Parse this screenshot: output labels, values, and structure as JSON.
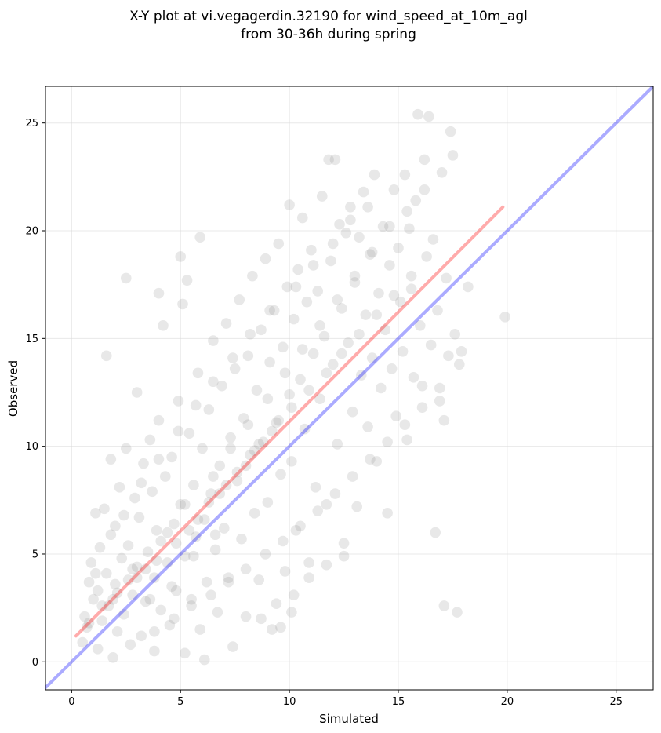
{
  "chart_data": {
    "type": "scatter",
    "title_line1": "X-Y plot at vi.vegagerdin.32190 for wind_speed_at_10m_agl",
    "title_line2": "from 30-36h during spring",
    "xlabel": "Simulated",
    "ylabel": "Observed",
    "xlim": [
      -1.2,
      26.7
    ],
    "ylim": [
      -1.3,
      26.7
    ],
    "xticks": [
      0,
      5,
      10,
      15,
      20,
      25
    ],
    "yticks": [
      0,
      5,
      10,
      15,
      20,
      25
    ],
    "grid": true,
    "point_color": "#7f7f7f",
    "identity_line": {
      "x": [
        -1.2,
        26.7
      ],
      "y": [
        -1.2,
        26.7
      ],
      "color": "#0000ff"
    },
    "fit_line": {
      "x": [
        0.2,
        19.8
      ],
      "y": [
        1.2,
        21.1
      ],
      "color": "#ff0000"
    },
    "points": [
      [
        0.5,
        0.9
      ],
      [
        0.6,
        2.1
      ],
      [
        0.7,
        1.6
      ],
      [
        0.8,
        3.7
      ],
      [
        0.9,
        4.6
      ],
      [
        1.0,
        2.9
      ],
      [
        1.1,
        6.9
      ],
      [
        1.2,
        0.6
      ],
      [
        1.2,
        3.3
      ],
      [
        1.3,
        5.3
      ],
      [
        1.4,
        1.9
      ],
      [
        1.5,
        7.1
      ],
      [
        1.6,
        4.1
      ],
      [
        1.7,
        2.6
      ],
      [
        1.8,
        9.4
      ],
      [
        1.8,
        5.9
      ],
      [
        1.9,
        0.2
      ],
      [
        2.0,
        3.6
      ],
      [
        2.0,
        6.3
      ],
      [
        2.1,
        1.4
      ],
      [
        2.2,
        8.1
      ],
      [
        2.3,
        4.8
      ],
      [
        2.4,
        2.2
      ],
      [
        2.5,
        17.8
      ],
      [
        2.5,
        9.9
      ],
      [
        2.6,
        5.4
      ],
      [
        2.7,
        0.8
      ],
      [
        2.8,
        3.1
      ],
      [
        2.9,
        7.6
      ],
      [
        3.0,
        12.5
      ],
      [
        3.0,
        4.4
      ],
      [
        3.1,
        6.7
      ],
      [
        3.2,
        1.2
      ],
      [
        3.3,
        9.2
      ],
      [
        3.4,
        2.8
      ],
      [
        3.5,
        5.1
      ],
      [
        3.6,
        10.3
      ],
      [
        3.7,
        7.9
      ],
      [
        3.8,
        0.5
      ],
      [
        3.8,
        3.9
      ],
      [
        3.9,
        6.1
      ],
      [
        4.0,
        17.1
      ],
      [
        4.0,
        11.2
      ],
      [
        4.1,
        2.4
      ],
      [
        4.2,
        15.6
      ],
      [
        4.3,
        8.6
      ],
      [
        4.4,
        4.6
      ],
      [
        4.5,
        1.7
      ],
      [
        4.6,
        9.5
      ],
      [
        4.7,
        6.4
      ],
      [
        4.8,
        3.3
      ],
      [
        4.9,
        12.1
      ],
      [
        5.0,
        18.8
      ],
      [
        5.0,
        7.3
      ],
      [
        5.1,
        16.6
      ],
      [
        5.2,
        0.4
      ],
      [
        5.2,
        4.9
      ],
      [
        5.3,
        17.7
      ],
      [
        5.4,
        10.6
      ],
      [
        5.5,
        2.9
      ],
      [
        5.6,
        8.2
      ],
      [
        5.7,
        5.8
      ],
      [
        5.8,
        13.4
      ],
      [
        5.9,
        1.5
      ],
      [
        5.9,
        19.7
      ],
      [
        6.0,
        9.9
      ],
      [
        6.1,
        6.6
      ],
      [
        6.1,
        0.1
      ],
      [
        6.2,
        3.7
      ],
      [
        6.3,
        11.7
      ],
      [
        6.4,
        7.8
      ],
      [
        6.5,
        14.9
      ],
      [
        6.6,
        5.2
      ],
      [
        6.7,
        2.3
      ],
      [
        6.8,
        9.1
      ],
      [
        6.9,
        12.8
      ],
      [
        7.0,
        6.2
      ],
      [
        7.1,
        15.7
      ],
      [
        7.2,
        3.9
      ],
      [
        7.3,
        10.4
      ],
      [
        7.4,
        0.7
      ],
      [
        7.5,
        13.6
      ],
      [
        7.6,
        8.4
      ],
      [
        7.7,
        16.8
      ],
      [
        7.8,
        5.7
      ],
      [
        7.9,
        11.3
      ],
      [
        8.0,
        2.1
      ],
      [
        8.1,
        14.2
      ],
      [
        8.2,
        9.6
      ],
      [
        8.3,
        17.9
      ],
      [
        8.4,
        6.9
      ],
      [
        8.5,
        12.6
      ],
      [
        8.6,
        3.8
      ],
      [
        8.7,
        15.4
      ],
      [
        8.8,
        10.2
      ],
      [
        8.9,
        18.7
      ],
      [
        9.0,
        7.4
      ],
      [
        9.1,
        13.9
      ],
      [
        9.2,
        1.5
      ],
      [
        9.3,
        16.3
      ],
      [
        9.4,
        11.1
      ],
      [
        9.5,
        19.4
      ],
      [
        9.6,
        8.7
      ],
      [
        9.7,
        14.6
      ],
      [
        9.8,
        4.2
      ],
      [
        9.9,
        17.4
      ],
      [
        10.0,
        12.4
      ],
      [
        10.0,
        21.2
      ],
      [
        10.1,
        9.3
      ],
      [
        10.2,
        15.9
      ],
      [
        10.3,
        6.1
      ],
      [
        10.4,
        18.2
      ],
      [
        10.5,
        13.1
      ],
      [
        10.6,
        20.6
      ],
      [
        10.7,
        10.8
      ],
      [
        10.8,
        16.7
      ],
      [
        10.9,
        4.6
      ],
      [
        11.0,
        19.1
      ],
      [
        11.1,
        14.3
      ],
      [
        11.2,
        8.1
      ],
      [
        11.3,
        17.2
      ],
      [
        11.4,
        12.2
      ],
      [
        11.5,
        21.6
      ],
      [
        11.6,
        15.1
      ],
      [
        11.7,
        7.3
      ],
      [
        11.8,
        23.3
      ],
      [
        11.9,
        18.6
      ],
      [
        12.0,
        13.8
      ],
      [
        12.1,
        23.3
      ],
      [
        12.2,
        10.1
      ],
      [
        12.3,
        20.3
      ],
      [
        12.4,
        16.4
      ],
      [
        12.5,
        4.9
      ],
      [
        12.6,
        19.9
      ],
      [
        12.7,
        14.8
      ],
      [
        12.8,
        21.1
      ],
      [
        12.9,
        11.6
      ],
      [
        13.0,
        17.6
      ],
      [
        13.1,
        7.2
      ],
      [
        13.2,
        19.7
      ],
      [
        13.3,
        13.3
      ],
      [
        13.4,
        21.8
      ],
      [
        13.5,
        16.1
      ],
      [
        13.6,
        10.9
      ],
      [
        13.7,
        18.9
      ],
      [
        13.8,
        14.1
      ],
      [
        13.9,
        22.6
      ],
      [
        14.0,
        9.3
      ],
      [
        14.1,
        17.1
      ],
      [
        14.2,
        12.7
      ],
      [
        14.3,
        20.2
      ],
      [
        14.4,
        15.4
      ],
      [
        14.5,
        6.9
      ],
      [
        14.6,
        18.4
      ],
      [
        14.7,
        13.6
      ],
      [
        14.8,
        21.9
      ],
      [
        14.9,
        11.4
      ],
      [
        15.0,
        19.2
      ],
      [
        15.1,
        16.7
      ],
      [
        15.2,
        14.4
      ],
      [
        15.3,
        22.6
      ],
      [
        15.4,
        10.3
      ],
      [
        15.5,
        20.1
      ],
      [
        15.6,
        17.3
      ],
      [
        15.7,
        13.2
      ],
      [
        15.8,
        21.4
      ],
      [
        15.9,
        25.4
      ],
      [
        16.0,
        15.6
      ],
      [
        16.1,
        12.8
      ],
      [
        16.2,
        23.3
      ],
      [
        16.3,
        18.8
      ],
      [
        16.4,
        25.3
      ],
      [
        16.5,
        14.7
      ],
      [
        16.6,
        19.6
      ],
      [
        16.7,
        6.0
      ],
      [
        16.8,
        16.3
      ],
      [
        16.9,
        12.1
      ],
      [
        17.0,
        22.7
      ],
      [
        17.1,
        2.6
      ],
      [
        17.2,
        17.8
      ],
      [
        17.3,
        14.2
      ],
      [
        17.4,
        24.6
      ],
      [
        17.5,
        23.5
      ],
      [
        17.6,
        15.2
      ],
      [
        17.7,
        2.3
      ],
      [
        17.8,
        13.8
      ],
      [
        17.9,
        14.4
      ],
      [
        18.2,
        17.4
      ],
      [
        19.9,
        16.0
      ],
      [
        17.1,
        11.2
      ],
      [
        1.6,
        14.2
      ],
      [
        3.6,
        2.9
      ],
      [
        4.6,
        3.5
      ],
      [
        5.6,
        4.9
      ],
      [
        6.6,
        5.9
      ],
      [
        2.6,
        3.8
      ],
      [
        3.4,
        4.3
      ],
      [
        4.1,
        5.6
      ],
      [
        5.4,
        6.1
      ],
      [
        6.3,
        7.4
      ],
      [
        7.1,
        8.2
      ],
      [
        8.0,
        9.1
      ],
      [
        8.6,
        10.1
      ],
      [
        9.2,
        10.7
      ],
      [
        10.1,
        11.8
      ],
      [
        10.9,
        12.6
      ],
      [
        11.7,
        13.4
      ],
      [
        12.4,
        14.3
      ],
      [
        13.2,
        15.2
      ],
      [
        14.0,
        16.1
      ],
      [
        14.8,
        17.0
      ],
      [
        15.6,
        17.9
      ],
      [
        1.4,
        2.6
      ],
      [
        2.1,
        3.2
      ],
      [
        3.0,
        3.9
      ],
      [
        3.9,
        4.7
      ],
      [
        4.8,
        5.5
      ],
      [
        5.8,
        6.6
      ],
      [
        6.8,
        7.8
      ],
      [
        7.6,
        8.8
      ],
      [
        8.4,
        9.8
      ],
      [
        9.5,
        11.2
      ],
      [
        0.8,
        1.8
      ],
      [
        1.9,
        2.9
      ],
      [
        2.8,
        4.3
      ],
      [
        4.4,
        6.0
      ],
      [
        5.2,
        7.3
      ],
      [
        6.5,
        8.6
      ],
      [
        7.3,
        9.9
      ],
      [
        8.1,
        11.0
      ],
      [
        9.0,
        12.2
      ],
      [
        9.8,
        13.4
      ],
      [
        10.6,
        14.5
      ],
      [
        11.4,
        15.6
      ],
      [
        12.2,
        16.8
      ],
      [
        13.0,
        17.9
      ],
      [
        13.8,
        19.0
      ],
      [
        14.6,
        20.2
      ],
      [
        15.4,
        20.9
      ],
      [
        16.2,
        21.9
      ],
      [
        1.1,
        4.1
      ],
      [
        2.4,
        6.8
      ],
      [
        3.2,
        8.3
      ],
      [
        4.0,
        9.4
      ],
      [
        4.9,
        10.7
      ],
      [
        5.7,
        11.9
      ],
      [
        6.5,
        13.0
      ],
      [
        7.4,
        14.1
      ],
      [
        8.2,
        15.2
      ],
      [
        9.1,
        16.3
      ],
      [
        10.3,
        17.4
      ],
      [
        11.1,
        18.4
      ],
      [
        12.0,
        19.4
      ],
      [
        12.8,
        20.5
      ],
      [
        13.6,
        21.1
      ],
      [
        3.8,
        1.4
      ],
      [
        4.7,
        2.0
      ],
      [
        5.5,
        2.6
      ],
      [
        6.4,
        3.1
      ],
      [
        7.2,
        3.7
      ],
      [
        8.0,
        4.3
      ],
      [
        8.9,
        5.0
      ],
      [
        9.7,
        5.6
      ],
      [
        10.5,
        6.3
      ],
      [
        11.3,
        7.0
      ],
      [
        12.1,
        7.8
      ],
      [
        12.9,
        8.6
      ],
      [
        13.7,
        9.4
      ],
      [
        14.5,
        10.2
      ],
      [
        15.3,
        11.0
      ],
      [
        16.1,
        11.8
      ],
      [
        16.9,
        12.7
      ],
      [
        9.4,
        2.7
      ],
      [
        10.2,
        3.1
      ],
      [
        10.9,
        3.9
      ],
      [
        11.7,
        4.5
      ],
      [
        12.5,
        5.5
      ],
      [
        9.6,
        1.6
      ],
      [
        10.1,
        2.3
      ],
      [
        8.7,
        2.0
      ]
    ]
  }
}
